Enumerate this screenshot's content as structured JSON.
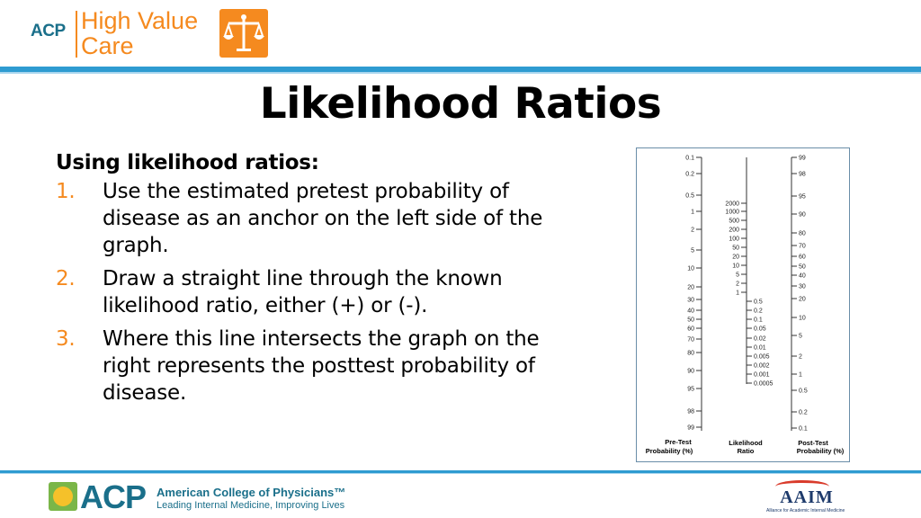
{
  "header": {
    "logo_acp": "ACP",
    "logo_line1": "High Value",
    "logo_line2": "Care",
    "logo_icon": "balance-scale-icon"
  },
  "slide": {
    "title": "Likelihood Ratios",
    "subhead": "Using likelihood ratios:",
    "steps": [
      {
        "num": "1.",
        "text": "Use the estimated pretest probability of disease as an anchor on the left side of the graph."
      },
      {
        "num": "2.",
        "text": "Draw a straight line through the known likelihood ratio, either (+) or (-)."
      },
      {
        "num": "3.",
        "text": "Where this line intersects the graph on the right represents the posttest probability of disease."
      }
    ]
  },
  "nomogram": {
    "pretest_ticks": [
      "0.1",
      "0.2",
      "0.5",
      "1",
      "2",
      "5",
      "10",
      "20",
      "30",
      "40",
      "50",
      "60",
      "70",
      "80",
      "90",
      "95",
      "98",
      "99"
    ],
    "lr_ticks_upper": [
      "2000",
      "1000",
      "500",
      "200",
      "100",
      "50",
      "20",
      "10",
      "5",
      "2",
      "1"
    ],
    "lr_ticks_lower": [
      "0.5",
      "0.2",
      "0.1",
      "0.05",
      "0.02",
      "0.01",
      "0.005",
      "0.002",
      "0.001",
      "0.0005"
    ],
    "posttest_ticks": [
      "99",
      "98",
      "95",
      "90",
      "80",
      "70",
      "60",
      "50",
      "40",
      "30",
      "20",
      "10",
      "5",
      "2",
      "1",
      "0.5",
      "0.2",
      "0.1"
    ],
    "label_pretest_1": "Pre-Test",
    "label_pretest_2": "Probability (%)",
    "label_lr_1": "Likelihood",
    "label_lr_2": "Ratio",
    "label_posttest_1": "Post-Test",
    "label_posttest_2": "Probability (%)"
  },
  "footer": {
    "acp_big": "ACP",
    "acp_name": "American College of Physicians™",
    "acp_tagline": "Leading Internal Medicine, Improving Lives",
    "aaim_word": "AAIM",
    "aaim_sub": "Alliance for Academic Internal Medicine"
  },
  "colors": {
    "accent_orange": "#f58a1f",
    "accent_blue": "#2e9bd1",
    "brand_teal": "#1a6f8a"
  }
}
